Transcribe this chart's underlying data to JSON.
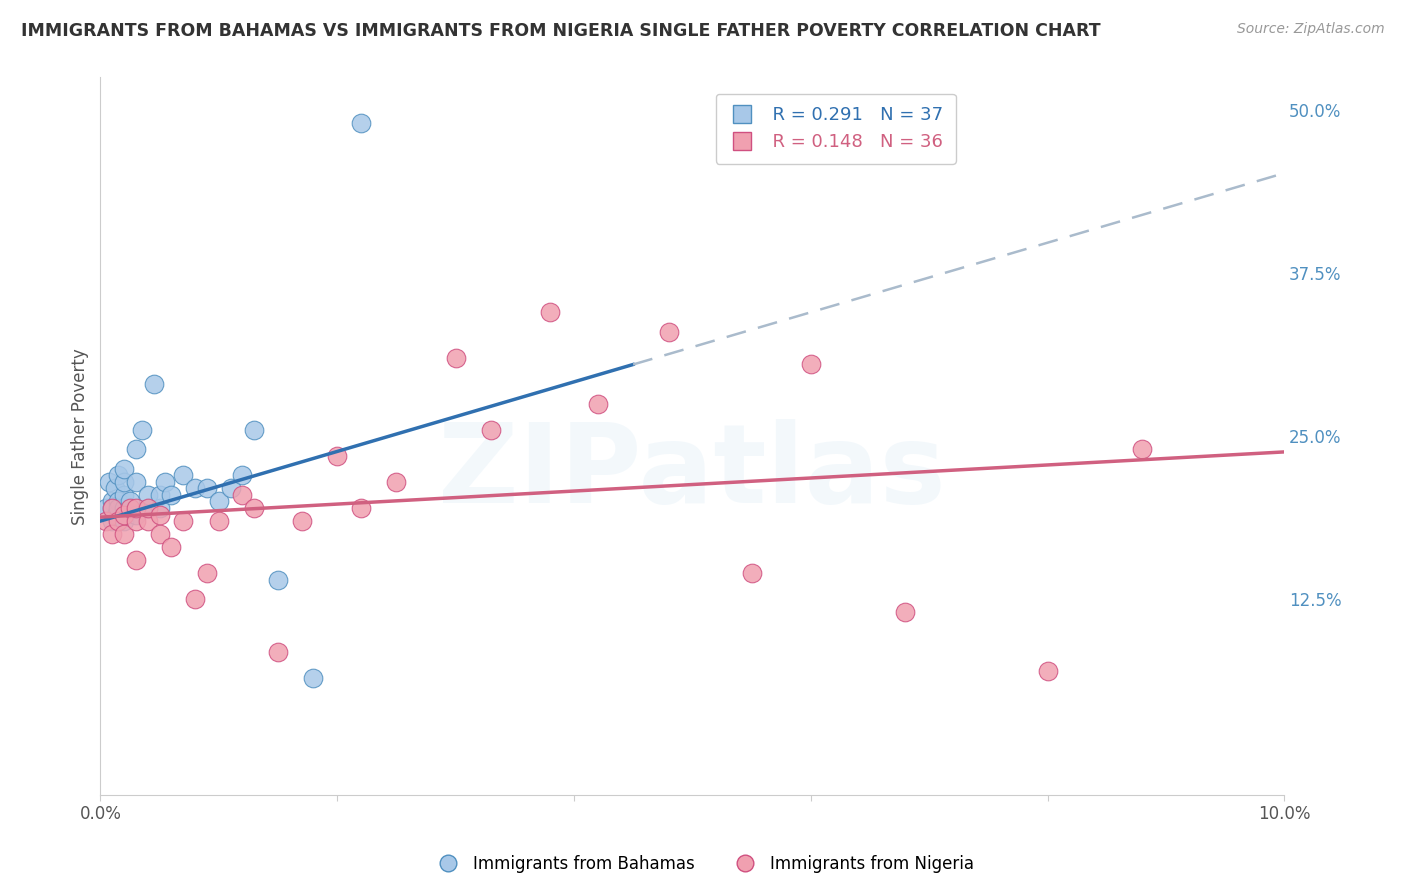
{
  "title": "IMMIGRANTS FROM BAHAMAS VS IMMIGRANTS FROM NIGERIA SINGLE FATHER POVERTY CORRELATION CHART",
  "source": "Source: ZipAtlas.com",
  "ylabel": "Single Father Poverty",
  "right_yticklabels": [
    "",
    "12.5%",
    "25.0%",
    "37.5%",
    "50.0%"
  ],
  "right_ytick_vals": [
    0.0,
    0.125,
    0.25,
    0.375,
    0.5
  ],
  "xmin": 0.0,
  "xmax": 0.1,
  "ymin": -0.025,
  "ymax": 0.525,
  "bahamas_x": [
    0.0005,
    0.0007,
    0.001,
    0.001,
    0.001,
    0.0012,
    0.0013,
    0.0015,
    0.0015,
    0.0015,
    0.002,
    0.002,
    0.002,
    0.002,
    0.002,
    0.0025,
    0.003,
    0.003,
    0.003,
    0.0035,
    0.004,
    0.004,
    0.0045,
    0.005,
    0.005,
    0.0055,
    0.006,
    0.007,
    0.008,
    0.009,
    0.01,
    0.011,
    0.012,
    0.013,
    0.015,
    0.018,
    0.022
  ],
  "bahamas_y": [
    0.195,
    0.215,
    0.2,
    0.195,
    0.185,
    0.21,
    0.19,
    0.2,
    0.22,
    0.195,
    0.185,
    0.195,
    0.205,
    0.215,
    0.225,
    0.2,
    0.19,
    0.215,
    0.24,
    0.255,
    0.195,
    0.205,
    0.29,
    0.195,
    0.205,
    0.215,
    0.205,
    0.22,
    0.21,
    0.21,
    0.2,
    0.21,
    0.22,
    0.255,
    0.14,
    0.065,
    0.49
  ],
  "nigeria_x": [
    0.0005,
    0.001,
    0.001,
    0.0015,
    0.002,
    0.002,
    0.0025,
    0.003,
    0.003,
    0.003,
    0.004,
    0.004,
    0.005,
    0.005,
    0.006,
    0.007,
    0.008,
    0.009,
    0.01,
    0.012,
    0.013,
    0.015,
    0.017,
    0.02,
    0.022,
    0.025,
    0.03,
    0.033,
    0.038,
    0.042,
    0.048,
    0.055,
    0.06,
    0.068,
    0.08,
    0.088
  ],
  "nigeria_y": [
    0.185,
    0.195,
    0.175,
    0.185,
    0.175,
    0.19,
    0.195,
    0.185,
    0.195,
    0.155,
    0.185,
    0.195,
    0.175,
    0.19,
    0.165,
    0.185,
    0.125,
    0.145,
    0.185,
    0.205,
    0.195,
    0.085,
    0.185,
    0.235,
    0.195,
    0.215,
    0.31,
    0.255,
    0.345,
    0.275,
    0.33,
    0.145,
    0.305,
    0.115,
    0.07,
    0.24
  ],
  "bahamas_color": "#A8C8E8",
  "nigeria_color": "#F0A0B0",
  "bahamas_edge_color": "#5090C0",
  "nigeria_edge_color": "#D05080",
  "bahamas_line_color": "#3070B0",
  "nigeria_line_color": "#D06080",
  "dashed_line_color": "#AABBCC",
  "background_color": "#FFFFFF",
  "grid_color": "#CCCCCC",
  "title_color": "#333333",
  "right_tick_color": "#5090C0",
  "watermark": "ZIPatlas",
  "bahamas_label": "Immigrants from Bahamas",
  "nigeria_label": "Immigrants from Nigeria",
  "r_bahamas": "R = 0.291",
  "n_bahamas": "N = 37",
  "r_nigeria": "R = 0.148",
  "n_nigeria": "N = 36",
  "blue_line_x0": 0.0,
  "blue_line_x1": 0.045,
  "blue_line_y0": 0.185,
  "blue_line_y1": 0.305,
  "dash_line_x0": 0.045,
  "dash_line_x1": 0.1,
  "pink_line_x0": 0.0,
  "pink_line_x1": 0.1,
  "pink_line_y0": 0.188,
  "pink_line_y1": 0.238
}
